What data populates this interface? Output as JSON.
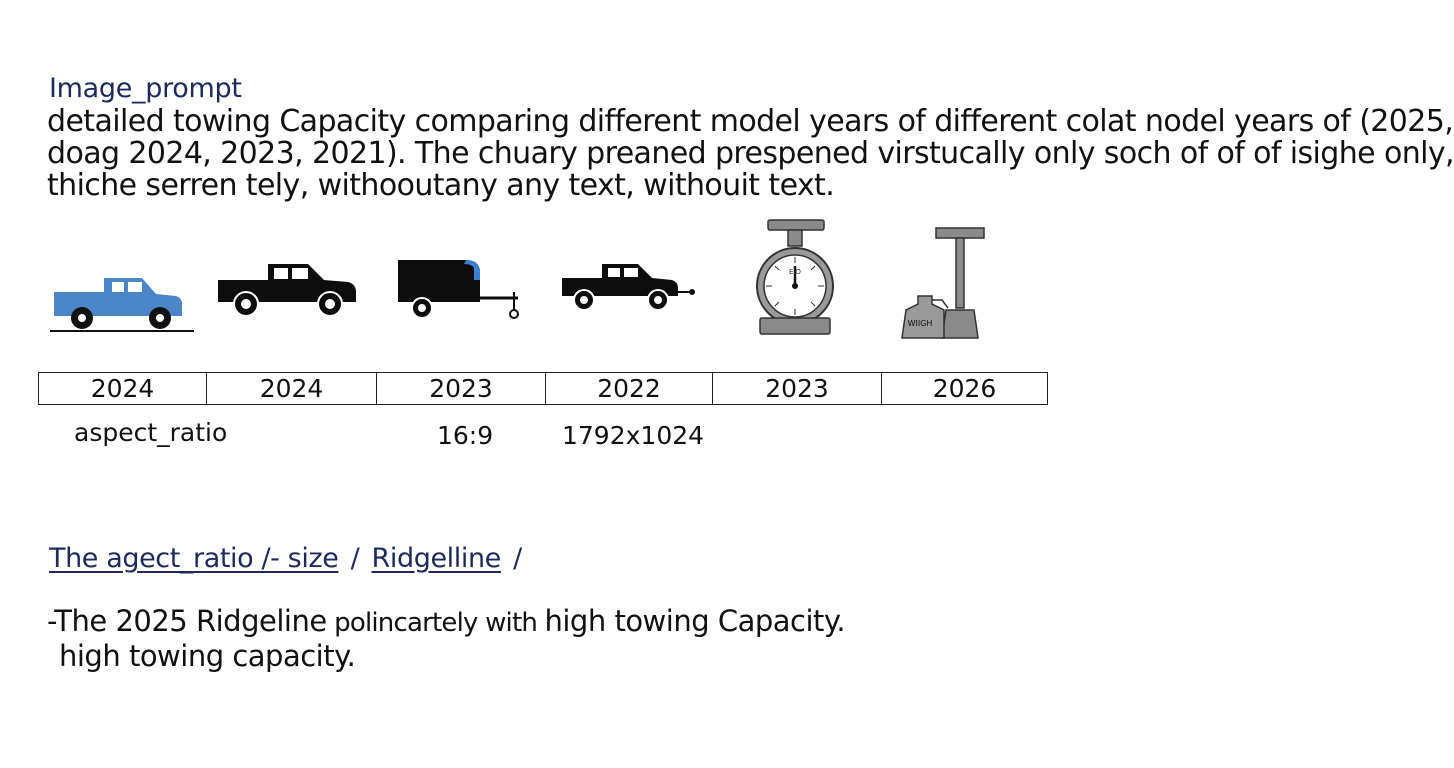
{
  "heading": "Image_prompt",
  "prompt_lines": [
    "detailed towing Capacity comparing different model years of different colat nodel years of (2025,",
    "doag 2024, 2023, 2021). The chuary preaned prespened virstucally only soch of of of isighe only,",
    "thiche serren tely, withooutany any text, withouit text."
  ],
  "icons": [
    {
      "name": "blue-pickup-truck-icon",
      "color": "#4a86c8"
    },
    {
      "name": "black-pickup-truck-icon",
      "color": "#0d0d0d"
    },
    {
      "name": "enclosed-trailer-icon",
      "color": "#0d0d0d",
      "accent": "#3a7fd0"
    },
    {
      "name": "truck-with-hitch-icon",
      "color": "#0d0d0d"
    },
    {
      "name": "weighing-scale-icon",
      "color": "#8a8a8a"
    },
    {
      "name": "weight-press-icon",
      "color": "#8a8a8a",
      "label": "WIIGH"
    }
  ],
  "scale_label": "ЕЮ",
  "years": [
    "2024",
    "2024",
    "2023",
    "2022",
    "2023",
    "2026"
  ],
  "meta": {
    "aspect_label": "aspect_ratio",
    "ratio": "16:9",
    "size": "1792x1024"
  },
  "links": {
    "part1": "The agect_ratio /- size",
    "sep1": "/",
    "part2": "Ridgelline",
    "sep2": "/"
  },
  "summary": {
    "line1_a": "-The 2025 Ridgeline",
    "line1_b": " polincartely with ",
    "line1_c": "high towing Capacity.",
    "line2": "high towing capacity."
  }
}
